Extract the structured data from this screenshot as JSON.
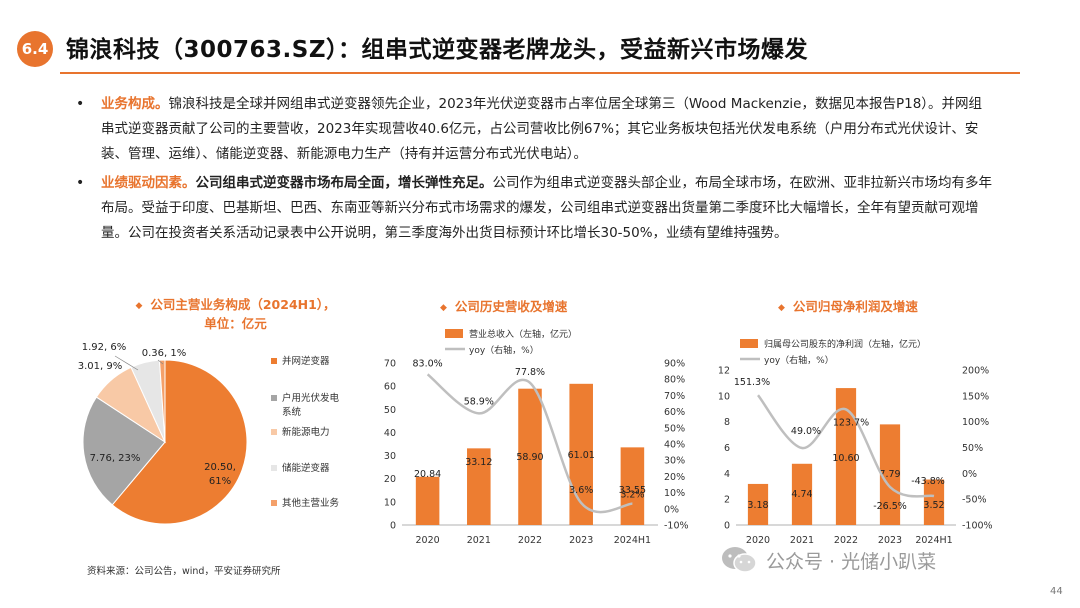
{
  "header": {
    "section_number": "6.4",
    "title": "锦浪科技（300763.SZ）：组串式逆变器老牌龙头，受益新兴市场爆发"
  },
  "bullets": [
    {
      "lead": "业务构成。",
      "bold": "",
      "text": "锦浪科技是全球并网组串式逆变器领先企业，2023年光伏逆变器市占率位居全球第三（Wood Mackenzie，数据见本报告P18）。并网组串式逆变器贡献了公司的主要营收，2023年实现营收40.6亿元，占公司营收比例67%；其它业务板块包括光伏发电系统（户用分布式光伏设计、安装、管理、运维）、储能逆变器、新能源电力生产（持有并运营分布式光伏电站）。"
    },
    {
      "lead": "业绩驱动因素。",
      "bold": "公司组串式逆变器市场布局全面，增长弹性充足。",
      "text": "公司作为组串式逆变器头部企业，布局全球市场，在欧洲、亚非拉新兴市场均有多年布局。受益于印度、巴基斯坦、巴西、东南亚等新兴分布式市场需求的爆发，公司组串式逆变器出货量第二季度环比大幅增长，全年有望贡献可观增量。公司在投资者关系活动记录表中公开说明，第三季度海外出货目标预计环比增长30-50%，业绩有望维持强势。"
    }
  ],
  "chart_titles": {
    "pie": [
      "公司主营业务构成（2024H1），",
      "单位：亿元"
    ],
    "revenue": "公司历史营收及增速",
    "profit": "公司归母净利润及增速"
  },
  "chart_data": [
    {
      "type": "pie",
      "title": "公司主营业务构成（2024H1），单位：亿元",
      "slices": [
        {
          "name": "并网逆变器",
          "value": 20.5,
          "percent": 61,
          "label": "20.50, 61%",
          "color": "#ed7d31"
        },
        {
          "name": "户用光伏发电系统",
          "value": 7.76,
          "percent": 23,
          "label": "7.76, 23%",
          "color": "#a5a5a5"
        },
        {
          "name": "新能源电力",
          "value": 3.01,
          "percent": 9,
          "label": "3.01, 9%",
          "color": "#f8c9a6"
        },
        {
          "name": "储能逆变器",
          "value": 1.92,
          "percent": 6,
          "label": "1.92, 6%",
          "color": "#e6e6e6"
        },
        {
          "name": "其他主营业务",
          "value": 0.36,
          "percent": 1,
          "label": "0.36, 1%",
          "color": "#f4a06a"
        }
      ],
      "legend_names": [
        "并网逆变器",
        "户用光伏发电\n系统",
        "新能源电力",
        "储能逆变器",
        "其他主营业务"
      ]
    },
    {
      "type": "bar",
      "title": "公司历史营收及增速",
      "categories": [
        "2020",
        "2021",
        "2022",
        "2023",
        "2024H1"
      ],
      "series": [
        {
          "name": "营业总收入（左轴，亿元）",
          "type": "bar",
          "axis": "left",
          "values": [
            20.84,
            33.12,
            58.9,
            61.01,
            33.55
          ],
          "labels": [
            "20.84",
            "33.12",
            "58.90",
            "61.01",
            "33.55"
          ],
          "color": "#ed7d31"
        },
        {
          "name": "yoy（右轴，%）",
          "type": "line",
          "axis": "right",
          "values": [
            83.0,
            58.9,
            77.8,
            3.6,
            3.2
          ],
          "labels": [
            "83.0%",
            "58.9%",
            "77.8%",
            "3.6%",
            "3.2%"
          ],
          "color": "#bfbfbf"
        }
      ],
      "yleft": {
        "min": 0,
        "max": 70,
        "ticks": [
          "0",
          "10",
          "20",
          "30",
          "40",
          "50",
          "60",
          "70"
        ]
      },
      "yright": {
        "min": -10,
        "max": 90,
        "ticks": [
          "-10%",
          "0%",
          "10%",
          "20%",
          "30%",
          "40%",
          "50%",
          "60%",
          "70%",
          "80%",
          "90%"
        ]
      }
    },
    {
      "type": "bar",
      "title": "公司归母净利润及增速",
      "categories": [
        "2020",
        "2021",
        "2022",
        "2023",
        "2024H1"
      ],
      "series": [
        {
          "name": "归属母公司股东的净利润（左轴，亿元）",
          "type": "bar",
          "axis": "left",
          "values": [
            3.18,
            4.74,
            10.6,
            7.79,
            3.52
          ],
          "labels": [
            "3.18",
            "4.74",
            "10.60",
            "7.79",
            "3.52"
          ],
          "color": "#ed7d31"
        },
        {
          "name": "yoy（右轴，%）",
          "type": "line",
          "axis": "right",
          "values": [
            151.3,
            49.0,
            123.7,
            -26.5,
            -43.8
          ],
          "labels": [
            "151.3%",
            "49.0%",
            "123.7%",
            "-26.5%",
            "-43.8%"
          ],
          "color": "#bfbfbf"
        }
      ],
      "yleft": {
        "min": 0,
        "max": 12,
        "ticks": [
          "0",
          "2",
          "4",
          "6",
          "8",
          "10",
          "12"
        ]
      },
      "yright": {
        "min": -100,
        "max": 200,
        "ticks": [
          "-100%",
          "-50%",
          "0%",
          "50%",
          "100%",
          "150%",
          "200%"
        ]
      }
    }
  ],
  "source": "资料来源：公司公告，wind，平安证券研究所",
  "watermark": "公众号 · 光储小趴菜",
  "page_number": "44"
}
